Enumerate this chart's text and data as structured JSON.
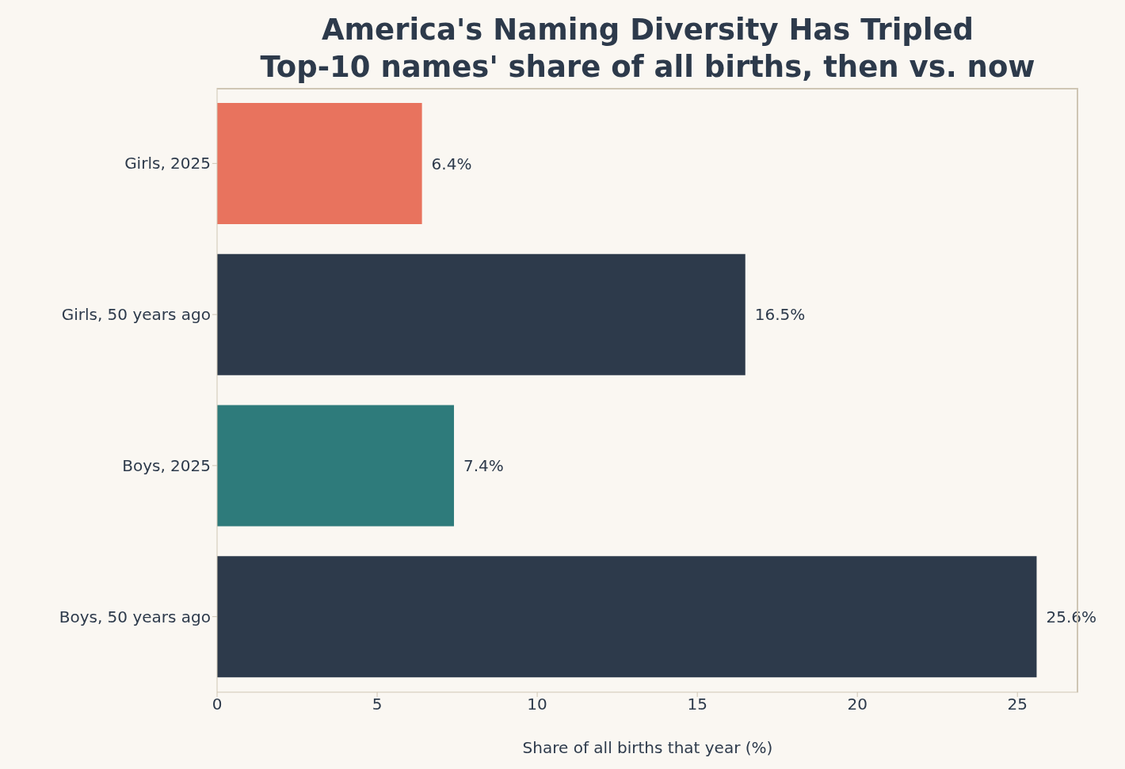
{
  "chart_data": {
    "type": "bar",
    "orientation": "horizontal",
    "title": "America's Naming Diversity Has Tripled",
    "subtitle": "Top-10 names' share of all births, then vs. now",
    "xlabel": "Share of all births that year (%)",
    "categories": [
      "Girls, 2025",
      "Girls, 50 years ago",
      "Boys, 2025",
      "Boys, 50 years ago"
    ],
    "values": [
      6.4,
      16.5,
      7.4,
      25.6
    ],
    "colors": [
      "#e8735e",
      "#2d3a4b",
      "#2e7b7b",
      "#2d3a4b"
    ],
    "value_labels": [
      "6.4%",
      "16.5%",
      "7.4%",
      "25.6%"
    ],
    "xlim": [
      0,
      26.9
    ],
    "xticks": [
      0,
      5,
      10,
      15,
      20,
      25
    ]
  }
}
